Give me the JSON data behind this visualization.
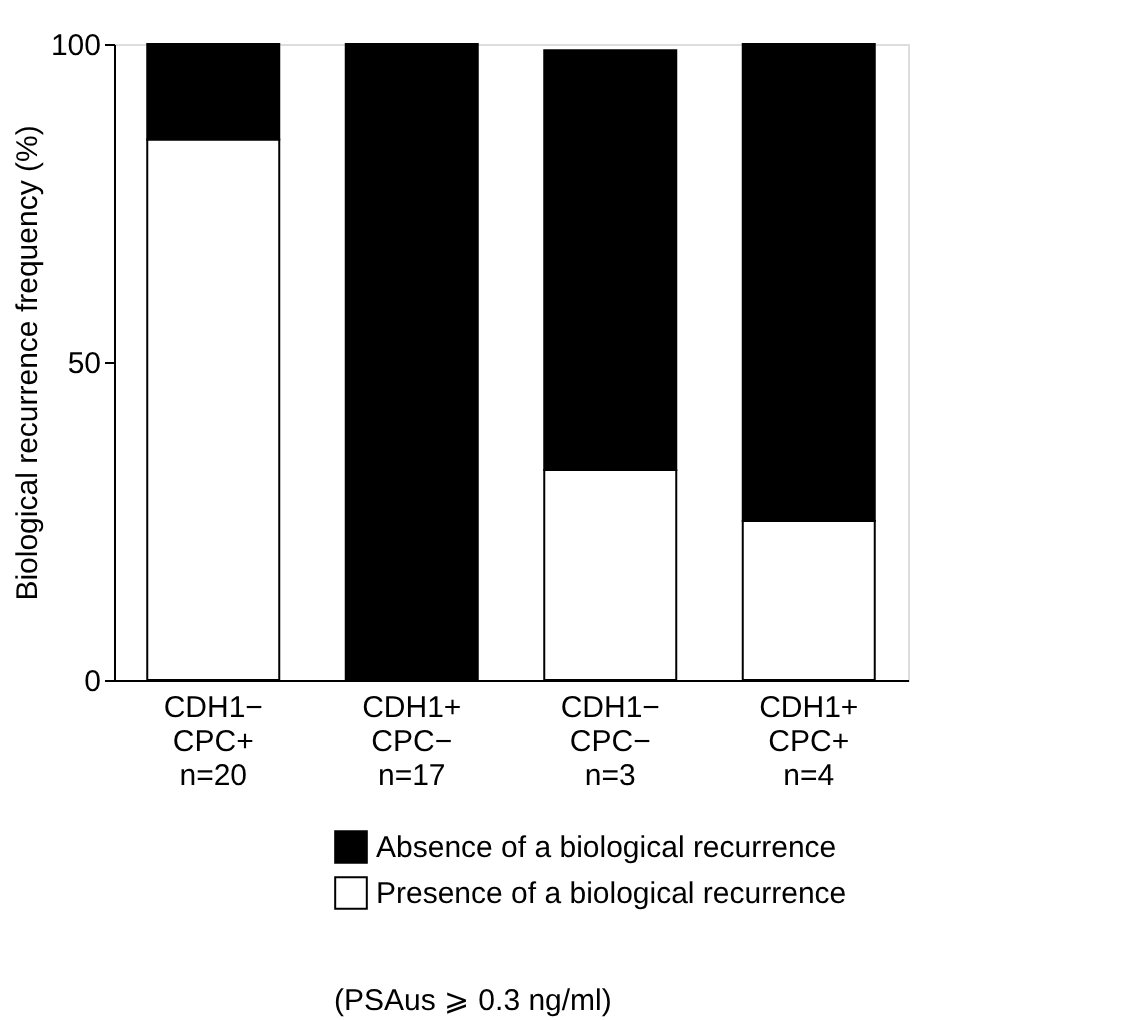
{
  "chart_data": {
    "type": "bar",
    "stacked": true,
    "ylabel": "Biological recurrence frequency (%)",
    "categories": [
      "CDH1−\nCPC+\nn=20",
      "CDH1+\nCPC−\nn=17",
      "CDH1−\nCPC−\nn=3",
      "CDH1+\nCPC+\nn=4"
    ],
    "series": [
      {
        "name": "Presence of a biological recurrence",
        "color": "#ffffff",
        "values": [
          85,
          0,
          33,
          25
        ]
      },
      {
        "name": "Absence of a biological recurrence",
        "color": "#000000",
        "values": [
          15,
          100,
          66,
          75
        ]
      }
    ],
    "ylim": [
      0,
      100
    ],
    "yticks": [
      0,
      50,
      100
    ],
    "grid": false,
    "legend": "bottom",
    "annotations": [
      "(PSAus ⩾ 0.3 ng/ml)"
    ]
  }
}
